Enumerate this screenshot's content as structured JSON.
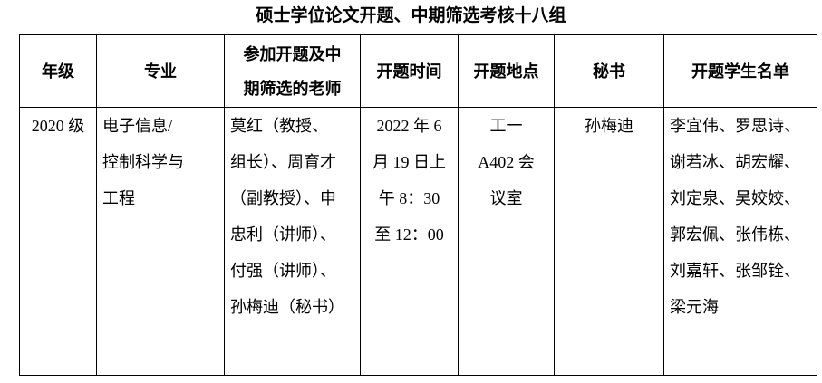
{
  "title": "硕士学位论文开题、中期筛选考核十八组",
  "table": {
    "headers": [
      [
        "年级"
      ],
      [
        "专业"
      ],
      [
        "参加开题及中",
        "期筛选的老师"
      ],
      [
        "开题时间"
      ],
      [
        "开题地点"
      ],
      [
        "秘书"
      ],
      [
        "开题学生名单"
      ]
    ],
    "rows": [
      {
        "grade": [
          "2020 级"
        ],
        "major": [
          "电子信息/",
          "控制科学与",
          "工程"
        ],
        "teachers": [
          "莫红（教授、",
          "组长）、周育才",
          "（副教授）、申",
          "忠利（讲师）、",
          "付强（讲师）、",
          "孙梅迪（秘书）"
        ],
        "time": [
          "2022 年 6",
          "月 19 日上",
          "午 8：30",
          "至 12：00"
        ],
        "place": [
          "工一",
          "A402 会",
          "议室"
        ],
        "secretary": [
          "孙梅迪"
        ],
        "students": [
          "李宜伟、罗思诗、",
          "谢若冰、胡宏耀、",
          "刘定泉、吴姣姣、",
          "郭宏佩、张伟栋、",
          "刘嘉轩、张邹铨、",
          "梁元海"
        ]
      }
    ]
  }
}
